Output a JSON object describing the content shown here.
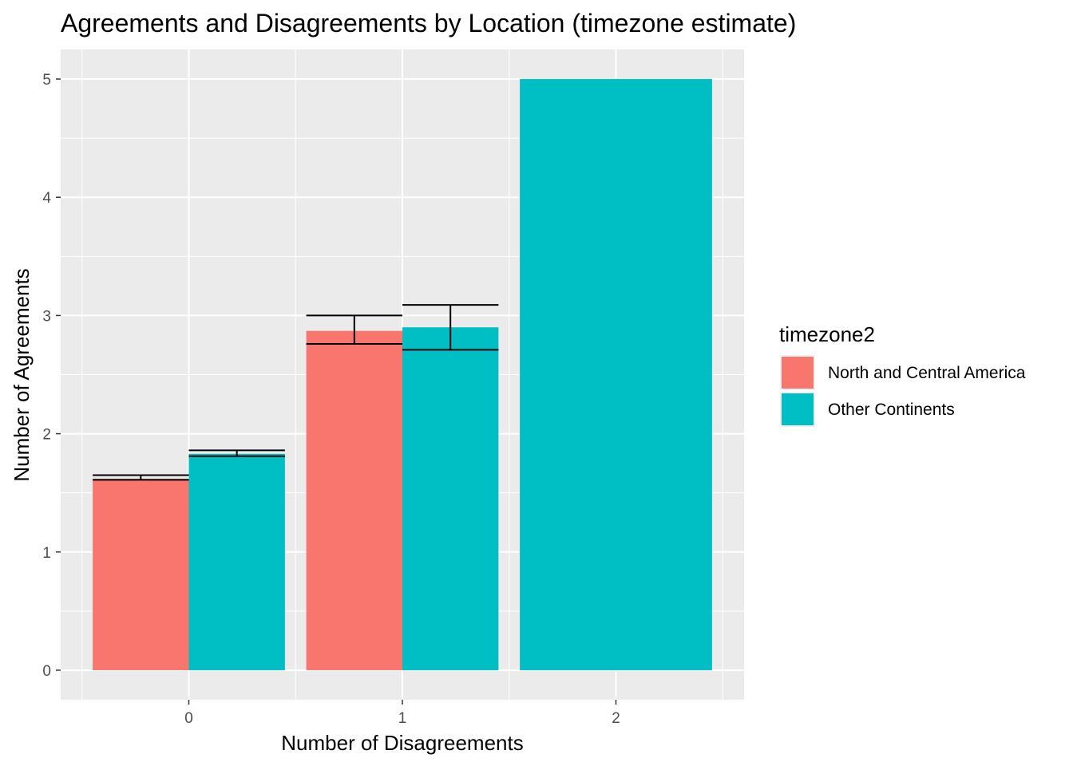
{
  "chart_data": {
    "type": "bar",
    "title": "Agreements and Disagreements by Location (timezone estimate)",
    "xlabel": "Number of Disagreements",
    "ylabel": "Number of Agreements",
    "categories": [
      "0",
      "1",
      "2"
    ],
    "yticks": [
      "0",
      "1",
      "2",
      "3",
      "4",
      "5"
    ],
    "ylim": [
      -0.25,
      5.25
    ],
    "grid": true,
    "legend": {
      "title": "timezone2",
      "position": "right"
    },
    "series": [
      {
        "name": "North and Central America",
        "color": "#F8766D",
        "values": [
          1.62,
          2.87,
          null
        ],
        "error_low": [
          1.61,
          2.76,
          null
        ],
        "error_high": [
          1.65,
          3.0,
          null
        ]
      },
      {
        "name": "Other Continents",
        "color": "#00BFC4",
        "values": [
          1.83,
          2.9,
          5.0
        ],
        "error_low": [
          1.81,
          2.71,
          null
        ],
        "error_high": [
          1.86,
          3.09,
          null
        ]
      }
    ]
  }
}
